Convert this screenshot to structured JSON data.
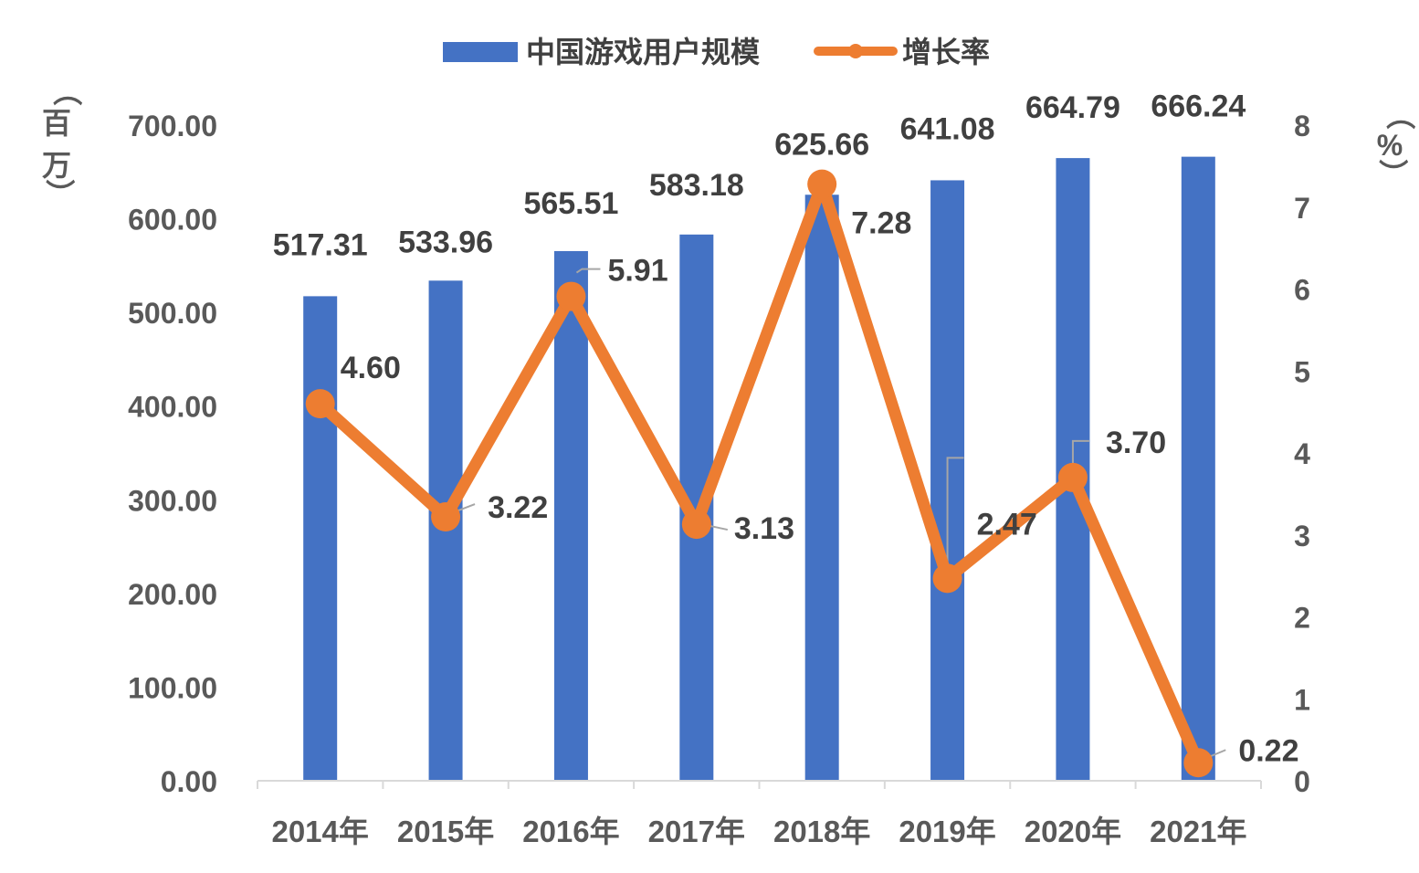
{
  "chart_data": {
    "type": "bar",
    "categories": [
      "2014年",
      "2015年",
      "2016年",
      "2017年",
      "2018年",
      "2019年",
      "2020年",
      "2021年"
    ],
    "series": [
      {
        "name": "中国游戏用户规模",
        "type": "bar",
        "axis": "left",
        "color": "#4472C4",
        "values": [
          517.31,
          533.96,
          565.51,
          583.18,
          625.66,
          641.08,
          664.79,
          666.24
        ],
        "labels": [
          "517.31",
          "533.96",
          "565.51",
          "583.18",
          "625.66",
          "641.08",
          "664.79",
          "666.24"
        ]
      },
      {
        "name": "增长率",
        "type": "line",
        "axis": "right",
        "color": "#ED7D31",
        "values": [
          4.6,
          3.22,
          5.91,
          3.13,
          7.28,
          2.47,
          3.7,
          0.22
        ],
        "labels": [
          "4.60",
          "3.22",
          "5.91",
          "3.13",
          "7.28",
          "2.47",
          "3.70",
          "0.22"
        ]
      }
    ],
    "y_left": {
      "label_chars": [
        "（",
        "百",
        "万",
        "）"
      ],
      "ylim": [
        0,
        700
      ],
      "ticks": [
        "0.00",
        "100.00",
        "200.00",
        "300.00",
        "400.00",
        "500.00",
        "600.00",
        "700.00"
      ]
    },
    "y_right": {
      "label_chars": [
        "（",
        "%",
        "）"
      ],
      "ylim": [
        0,
        8
      ],
      "ticks": [
        "0",
        "1",
        "2",
        "3",
        "4",
        "5",
        "6",
        "7",
        "8"
      ]
    },
    "grid": false,
    "legend": "top-center",
    "legend_items": [
      "中国游戏用户规模",
      "增长率"
    ]
  }
}
